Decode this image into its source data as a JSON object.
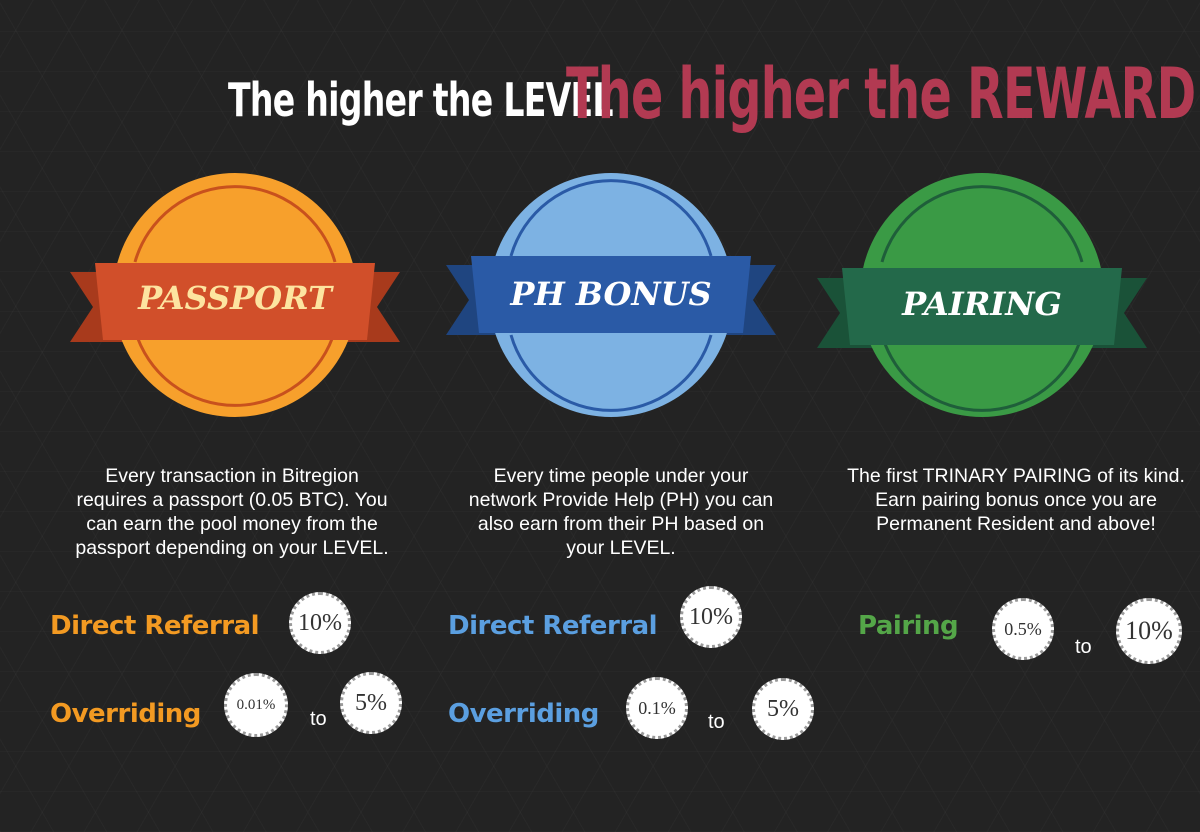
{
  "header": {
    "title_left": "The higher the LEVEL",
    "title_right": "The higher the REWARD"
  },
  "colors": {
    "background": "#232323",
    "title_right": "#b23a52",
    "passport_circle": "#f7a02c",
    "passport_ribbon": "#d14f2a",
    "ph_circle": "#7db2e3",
    "ph_ribbon": "#2a5aa6",
    "pairing_circle": "#3a9a45",
    "pairing_ribbon": "#23694a",
    "label_orange": "#f39a22",
    "label_blue": "#5b9fe0",
    "label_green": "#54a648"
  },
  "columns": [
    {
      "badge_label": "PASSPORT",
      "badge_icon": "ribbon-badge",
      "description": [
        "Every transaction in Bitregion",
        "requires a passport (0.05 BTC). You",
        "can earn the pool money from the",
        "passport depending on your LEVEL."
      ],
      "row1_label": "Direct Referral",
      "row1_value": "10%",
      "row2_label": "Overriding",
      "row2_min": "0.01%",
      "row2_to": "to",
      "row2_max": "5%"
    },
    {
      "badge_label": "PH BONUS",
      "badge_icon": "ribbon-badge",
      "description": [
        "Every time people under your",
        "network Provide Help (PH) you can",
        "also earn from their PH based on",
        "your LEVEL."
      ],
      "row1_label": "Direct Referral",
      "row1_value": "10%",
      "row2_label": "Overriding",
      "row2_min": "0.1%",
      "row2_to": "to",
      "row2_max": "5%"
    },
    {
      "badge_label": "PAIRING",
      "badge_icon": "ribbon-badge",
      "description": [
        "The first TRINARY PAIRING of its kind.",
        "Earn pairing bonus once you are",
        "Permanent Resident and above!"
      ],
      "row1_label": "Pairing",
      "row1_min": "0.5%",
      "row1_to": "to",
      "row1_max": "10%"
    }
  ]
}
